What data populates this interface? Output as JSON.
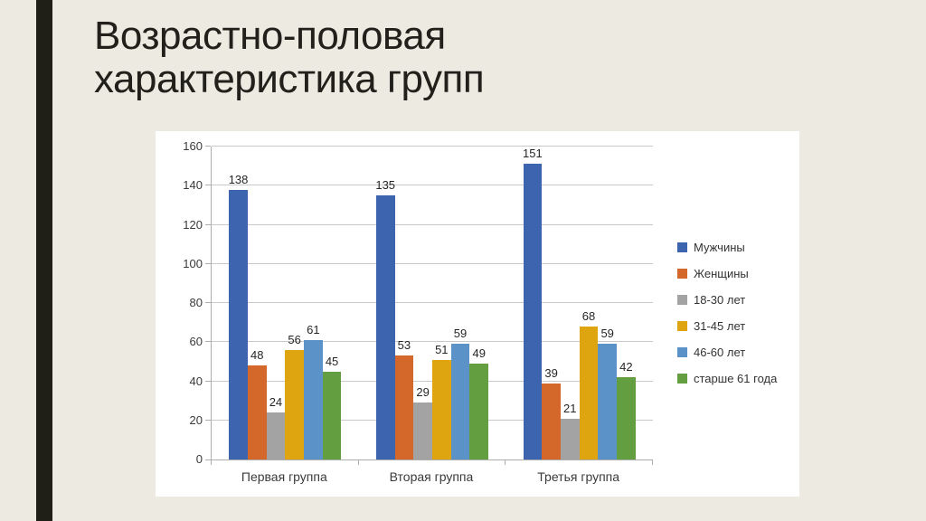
{
  "slide": {
    "title": "Возрастно-половая характеристика групп"
  },
  "chart_data": {
    "type": "bar",
    "title": "Возрастно-половая характеристика групп",
    "categories": [
      "Первая группа",
      "Вторая группа",
      "Третья группа"
    ],
    "series": [
      {
        "name": "Мужчины",
        "color": "#3D64AE",
        "values": [
          138,
          135,
          151
        ]
      },
      {
        "name": "Женщины",
        "color": "#D4682B",
        "values": [
          48,
          53,
          39
        ]
      },
      {
        "name": "18-30 лет",
        "color": "#A3A3A3",
        "values": [
          24,
          29,
          21
        ]
      },
      {
        "name": "31-45 лет",
        "color": "#DEA511",
        "values": [
          56,
          51,
          68
        ]
      },
      {
        "name": "46-60 лет",
        "color": "#5B92C8",
        "values": [
          61,
          59,
          59
        ]
      },
      {
        "name": "старше 61 года",
        "color": "#639F41",
        "values": [
          45,
          49,
          42
        ]
      }
    ],
    "ylim": [
      0,
      160
    ],
    "ytick_step": 20,
    "yticks": [
      0,
      20,
      40,
      60,
      80,
      100,
      120,
      140,
      160
    ],
    "grid": true,
    "legend_position": "right",
    "data_labels": true,
    "xlabel": "",
    "ylabel": ""
  },
  "colors": {
    "background": "#EDEAE2",
    "accent_bar": "#201F17",
    "panel": "#FFFFFF",
    "gridline": "#C9C9C9",
    "axis": "#ADADAD",
    "title_text": "#21201B"
  }
}
